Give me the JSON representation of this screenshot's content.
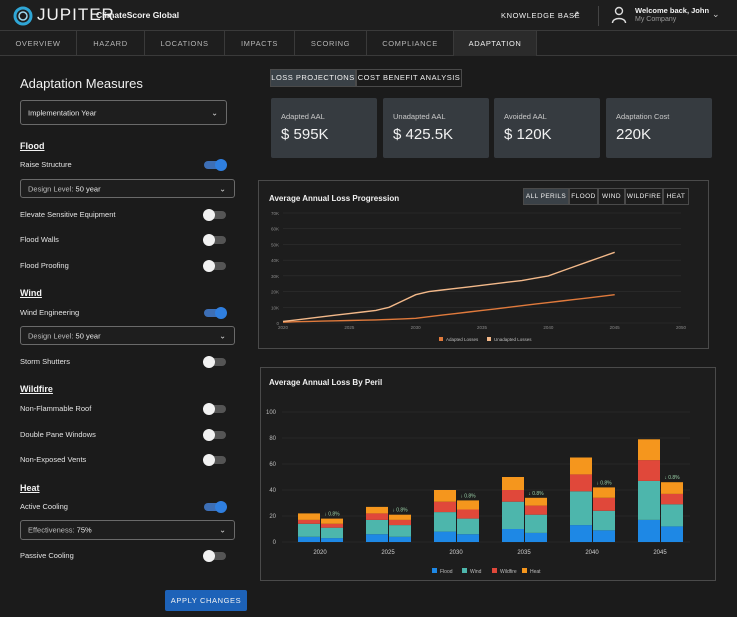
{
  "header": {
    "brand": "JUPITER",
    "product": "ClimateScore Global",
    "knowledge_base": "KNOWLEDGE BASE",
    "welcome": "Welcome back, John",
    "company": "My Company"
  },
  "nav": {
    "tabs": [
      "OVERVIEW",
      "HAZARD",
      "LOCATIONS",
      "IMPACTS",
      "SCORING",
      "COMPLIANCE",
      "ADAPTATION"
    ],
    "active": "ADAPTATION"
  },
  "left": {
    "title": "Adaptation Measures",
    "year_select": "Implementation Year",
    "sections": {
      "flood": "Flood",
      "wind": "Wind",
      "wildfire": "Wildfire",
      "heat": "Heat"
    },
    "options": {
      "raise_structure": "Raise Structure",
      "flood_design_prefix": "Design Level:",
      "flood_design_value": "50 year",
      "elevate_equipment": "Elevate Sensitive Equipment",
      "flood_walls": "Flood Walls",
      "flood_proofing": "Flood Proofing",
      "wind_engineering": "Wind Engineering",
      "wind_design_prefix": "Design Level:",
      "wind_design_value": "50 year",
      "storm_shutters": "Storm Shutters",
      "nonflammable_roof": "Non-Flammable Roof",
      "double_pane": "Double Pane Windows",
      "nonexposed_vents": "Non-Exposed Vents",
      "active_cooling": "Active Cooling",
      "effectiveness_prefix": "Effectiveness:",
      "effectiveness_value": "75%",
      "passive_cooling": "Passive Cooling"
    },
    "toggles": {
      "raise_structure": true,
      "elevate_equipment": false,
      "flood_walls": false,
      "flood_proofing": false,
      "wind_engineering": true,
      "storm_shutters": false,
      "nonflammable_roof": false,
      "double_pane": false,
      "nonexposed_vents": false,
      "active_cooling": true,
      "passive_cooling": false
    },
    "apply": "APPLY CHANGES"
  },
  "view_tabs": [
    "LOSS PROJECTIONS",
    "COST BENEFIT ANALYSIS"
  ],
  "cards": [
    {
      "label": "Adapted AAL",
      "value": "$ 595K"
    },
    {
      "label": "Unadapted AAL",
      "value": "$ 425.5K"
    },
    {
      "label": "Avoided AAL",
      "value": "$ 120K"
    },
    {
      "label": "Adaptation Cost",
      "value": "220K"
    }
  ],
  "line_panel": {
    "title": "Average Annual Loss Progression",
    "filters": [
      "ALL PERILS",
      "FLOOD",
      "WIND",
      "WILDFIRE",
      "HEAT"
    ],
    "active_filter": "ALL PERILS"
  },
  "bar_panel": {
    "title": "Average Annual Loss By Peril"
  },
  "colors": {
    "accent": "#1d62b8",
    "adapted": "#e07a3c",
    "unadapted": "#f3b98a",
    "flood": "#1e88e5",
    "wind": "#4db6ac",
    "wildfire": "#e0483a",
    "heat": "#f5961d",
    "reduction": "#9ad0a8"
  },
  "chart_data": [
    {
      "type": "line",
      "title": "Average Annual Loss Progression",
      "x": [
        2020,
        2021,
        2022,
        2023,
        2024,
        2025,
        2026,
        2027,
        2028,
        2029,
        2030,
        2031,
        2032,
        2033,
        2034,
        2035,
        2036,
        2037,
        2038,
        2039,
        2040,
        2041,
        2042,
        2043,
        2044,
        2045,
        2046,
        2047,
        2048,
        2049,
        2050
      ],
      "x_ticks": [
        "2020",
        "2025",
        "2030",
        "2035",
        "2040",
        "2045",
        "2050"
      ],
      "y_ticks": [
        "0",
        "10K",
        "20K",
        "30K",
        "40K",
        "50K",
        "60K",
        "70K"
      ],
      "ylim": [
        0,
        70000
      ],
      "series": [
        {
          "name": "Adapted Losses",
          "values": [
            500,
            800,
            1000,
            1200,
            1400,
            1600,
            1800,
            2000,
            2300,
            2600,
            3000,
            4000,
            5000,
            6000,
            7000,
            8000,
            9000,
            10000,
            11000,
            12000,
            13000,
            14000,
            15000,
            16000,
            17000,
            18000,
            19000,
            20000,
            21000,
            22000,
            23000
          ]
        },
        {
          "name": "Unadapted Losses",
          "values": [
            1000,
            2000,
            3000,
            4000,
            5000,
            6000,
            7000,
            8000,
            10000,
            14000,
            18000,
            20000,
            21000,
            22000,
            23000,
            24000,
            25000,
            26000,
            27000,
            28500,
            30000,
            33000,
            36000,
            39000,
            42000,
            45000,
            48000,
            51000,
            53000,
            54500,
            55500
          ]
        }
      ],
      "legend": "bottom"
    },
    {
      "type": "bar",
      "title": "Average Annual Loss By Peril",
      "categories": [
        "2020",
        "2025",
        "2030",
        "2035",
        "2040",
        "2045"
      ],
      "y_ticks": [
        "0",
        "20",
        "40",
        "60",
        "80",
        "100"
      ],
      "ylim": [
        0,
        100
      ],
      "series": [
        {
          "name": "Flood",
          "unadapted": [
            4,
            6,
            8,
            10,
            13,
            17
          ],
          "adapted": [
            3,
            4,
            6,
            7,
            9,
            12
          ]
        },
        {
          "name": "Wind",
          "unadapted": [
            10,
            11,
            15,
            21,
            26,
            30
          ],
          "adapted": [
            8,
            9,
            12,
            14,
            15,
            17
          ]
        },
        {
          "name": "Wildfire",
          "unadapted": [
            3,
            5,
            8,
            9,
            13,
            16
          ],
          "adapted": [
            3,
            4,
            7,
            7,
            10,
            8
          ]
        },
        {
          "name": "Heat",
          "unadapted": [
            5,
            5,
            9,
            10,
            13,
            16
          ],
          "adapted": [
            4,
            4,
            7,
            6,
            8,
            9
          ]
        }
      ],
      "reduction_labels": [
        "0.8%",
        "0.8%",
        "0.8%",
        "0.8%",
        "0.8%",
        "0.8%"
      ],
      "legend": "bottom"
    }
  ]
}
